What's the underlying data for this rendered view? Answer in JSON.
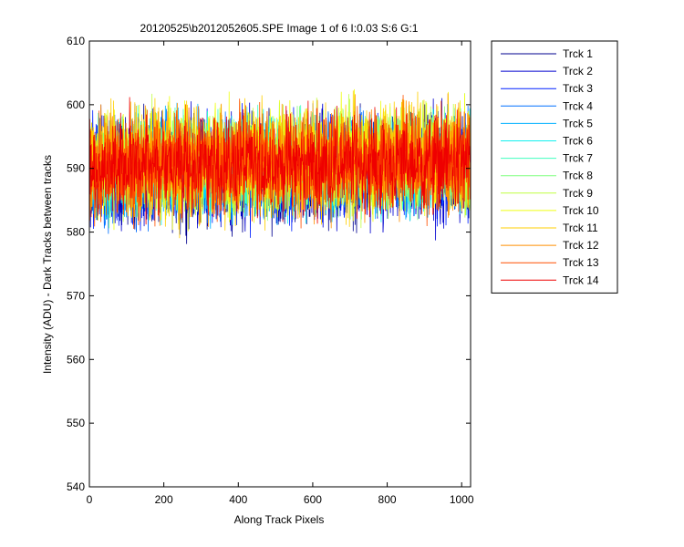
{
  "chart_data": {
    "type": "line",
    "title": "20120525\\b2012052605.SPE  Image 1 of 6  I:0.03  S:6  G:1",
    "xlabel": "Along Track Pixels",
    "ylabel": "Intensity (ADU) - Dark Tracks between tracks",
    "xlim": [
      0,
      1024
    ],
    "ylim": [
      540,
      610
    ],
    "xticks": [
      0,
      200,
      400,
      600,
      800,
      1000
    ],
    "yticks": [
      540,
      550,
      560,
      570,
      580,
      590,
      600,
      610
    ],
    "grid": false,
    "legend_position": "outside-right",
    "samples_per_series": 1024,
    "series": [
      {
        "name": "Trck 1",
        "color": "#00008f",
        "mean": 589.3,
        "amp": 4.0
      },
      {
        "name": "Trck 2",
        "color": "#0000cf",
        "mean": 589.0,
        "amp": 4.2
      },
      {
        "name": "Trck 3",
        "color": "#0020ff",
        "mean": 589.5,
        "amp": 4.0
      },
      {
        "name": "Trck 4",
        "color": "#0070ff",
        "mean": 589.8,
        "amp": 3.8
      },
      {
        "name": "Trck 5",
        "color": "#00b0ff",
        "mean": 590.0,
        "amp": 3.8
      },
      {
        "name": "Trck 6",
        "color": "#10f0ef",
        "mean": 590.0,
        "amp": 3.6
      },
      {
        "name": "Trck 7",
        "color": "#40ffbf",
        "mean": 590.2,
        "amp": 3.6
      },
      {
        "name": "Trck 8",
        "color": "#80ff80",
        "mean": 590.3,
        "amp": 3.6
      },
      {
        "name": "Trck 9",
        "color": "#c0ff40",
        "mean": 590.6,
        "amp": 4.0
      },
      {
        "name": "Trck 10",
        "color": "#efff10",
        "mean": 590.8,
        "amp": 4.2
      },
      {
        "name": "Trck 11",
        "color": "#ffcf00",
        "mean": 590.8,
        "amp": 4.2
      },
      {
        "name": "Trck 12",
        "color": "#ff8f00",
        "mean": 590.6,
        "amp": 4.0
      },
      {
        "name": "Trck 13",
        "color": "#ff4f00",
        "mean": 590.4,
        "amp": 3.8
      },
      {
        "name": "Trck 14",
        "color": "#ef0000",
        "mean": 590.2,
        "amp": 3.8
      }
    ]
  }
}
